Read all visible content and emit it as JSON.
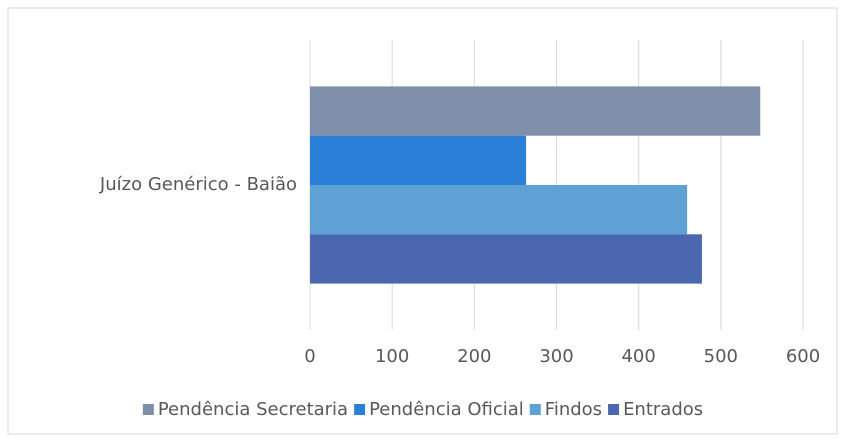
{
  "chart_data": {
    "type": "bar",
    "orientation": "horizontal",
    "categories": [
      "Juízo Genérico - Baião"
    ],
    "series": [
      {
        "name": "Pendência Secretaria",
        "color": "#7f8fa9",
        "values": [
          548
        ]
      },
      {
        "name": "Pendência Oficial",
        "color": "#2a7fd6",
        "values": [
          263
        ]
      },
      {
        "name": "Findos",
        "color": "#5fa0d5",
        "values": [
          459
        ]
      },
      {
        "name": "Entrados",
        "color": "#4a67b0",
        "values": [
          477
        ]
      }
    ],
    "xlim": [
      0,
      600
    ],
    "xticks": [
      0,
      100,
      200,
      300,
      400,
      500,
      600
    ],
    "grid": true,
    "legend": "bottom"
  }
}
